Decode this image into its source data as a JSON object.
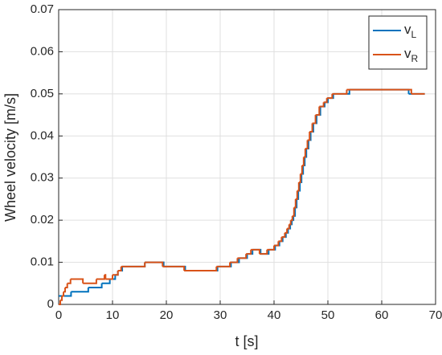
{
  "chart_data": {
    "type": "step",
    "xlabel": "t [s]",
    "ylabel": "Wheel velocity [m/s]",
    "xlim": [
      0,
      70
    ],
    "ylim": [
      0,
      0.07
    ],
    "xticks": [
      0,
      10,
      20,
      30,
      40,
      50,
      60,
      70
    ],
    "yticks": [
      0,
      0.01,
      0.02,
      0.03,
      0.04,
      0.05,
      0.06,
      0.07
    ],
    "grid": true,
    "legend": "northeast",
    "series": [
      {
        "name": "vL",
        "color": "#0072BD",
        "x": [
          0,
          2.3,
          5.5,
          8,
          9.5,
          10.5,
          11,
          11.8,
          16,
          19.5,
          23.5,
          29.5,
          32,
          33.5,
          35,
          36,
          37.5,
          39,
          40.2,
          41,
          41.6,
          42.2,
          42.6,
          43,
          43.3,
          43.6,
          43.9,
          44.2,
          44.5,
          44.8,
          45.1,
          45.4,
          45.7,
          46,
          46.4,
          46.8,
          47.3,
          47.9,
          48.6,
          49.4,
          50,
          51,
          54,
          65,
          68
        ],
        "values": [
          0.002,
          0.003,
          0.004,
          0.005,
          0.006,
          0.007,
          0.008,
          0.009,
          0.01,
          0.009,
          0.008,
          0.009,
          0.01,
          0.011,
          0.012,
          0.013,
          0.012,
          0.013,
          0.014,
          0.015,
          0.016,
          0.017,
          0.018,
          0.019,
          0.02,
          0.021,
          0.023,
          0.025,
          0.027,
          0.029,
          0.031,
          0.033,
          0.035,
          0.037,
          0.039,
          0.041,
          0.043,
          0.045,
          0.047,
          0.048,
          0.049,
          0.05,
          0.051,
          0.05,
          0.05
        ]
      },
      {
        "name": "vR",
        "color": "#D95319",
        "x": [
          0,
          0.3,
          0.6,
          0.9,
          1.2,
          1.6,
          2.2,
          4.5,
          7,
          8.5,
          8.7,
          10,
          11,
          11.6,
          16,
          19.3,
          23.3,
          29.3,
          31.8,
          33.2,
          34.8,
          35.7,
          37.3,
          38.7,
          40,
          40.8,
          41.4,
          42,
          42.4,
          42.8,
          43.1,
          43.4,
          43.7,
          44,
          44.3,
          44.6,
          44.9,
          45.2,
          45.5,
          45.8,
          46.2,
          46.6,
          47.1,
          47.7,
          48.4,
          49.2,
          49.8,
          50.8,
          53.5,
          65.5,
          68
        ],
        "values": [
          0,
          0.001,
          0.002,
          0.003,
          0.004,
          0.005,
          0.006,
          0.005,
          0.006,
          0.007,
          0.006,
          0.007,
          0.008,
          0.009,
          0.01,
          0.009,
          0.008,
          0.009,
          0.01,
          0.011,
          0.012,
          0.013,
          0.012,
          0.013,
          0.014,
          0.015,
          0.016,
          0.017,
          0.018,
          0.019,
          0.02,
          0.021,
          0.023,
          0.025,
          0.027,
          0.029,
          0.031,
          0.033,
          0.035,
          0.037,
          0.039,
          0.041,
          0.043,
          0.045,
          0.047,
          0.048,
          0.049,
          0.05,
          0.051,
          0.05,
          0.05
        ]
      }
    ]
  }
}
